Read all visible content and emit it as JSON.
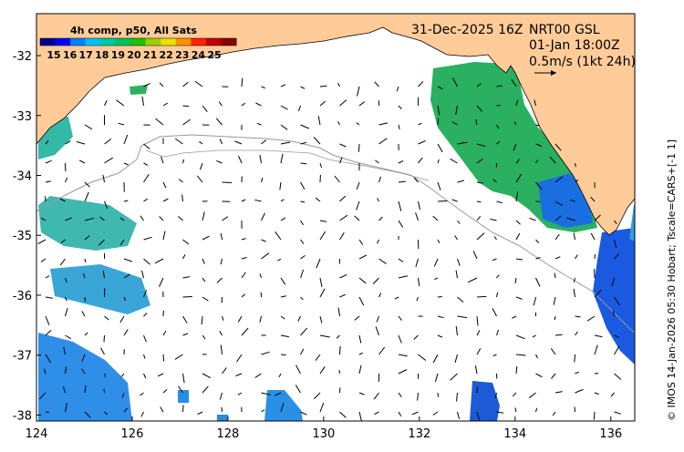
{
  "map": {
    "lon_range": [
      124,
      136.5
    ],
    "lat_range": [
      -38.1,
      -31.3
    ],
    "x_ticks": [
      "124",
      "126",
      "128",
      "130",
      "132",
      "134",
      "136"
    ],
    "y_ticks": [
      "-32",
      "-33",
      "-34",
      "-35",
      "-36",
      "-37",
      "-38"
    ],
    "colors": {
      "land": "#ffcc99",
      "sea": "#ffffff",
      "isobath": "#999999",
      "vector": "#000000"
    }
  },
  "legend": {
    "title": "4h comp, p50, All Sats",
    "labels": [
      "15",
      "16",
      "17",
      "18",
      "19",
      "20",
      "21",
      "22",
      "23",
      "24",
      "25"
    ],
    "colors": [
      "#00008b",
      "#0000ff",
      "#0080ff",
      "#00c0ff",
      "#00c8a0",
      "#00c060",
      "#20c000",
      "#a0d000",
      "#e8e000",
      "#ff9000",
      "#ff2000",
      "#c00000",
      "#8b0000"
    ]
  },
  "header": {
    "date": "31-Dec-2025 16Z",
    "product": "NRT00 GSL",
    "valid_time": "01-Jan 18:00Z",
    "scale_text": "0.5m/s (1kt 24h)"
  },
  "credit": "© IMOS 14-Jan-2026 05:30 Hobart; Tscale=CARS+[-1 1]"
}
